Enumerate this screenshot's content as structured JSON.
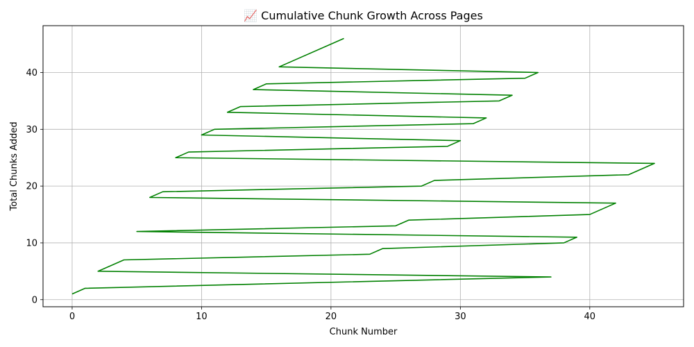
{
  "chart_data": {
    "type": "line",
    "title": "📈 Cumulative Chunk Growth Across Pages",
    "xlabel": "Chunk Number",
    "ylabel": "Total Chunks Added",
    "xlim": [
      -2.25,
      47.25
    ],
    "ylim": [
      -1.25,
      48.25
    ],
    "x_ticks": [
      0,
      10,
      20,
      30,
      40
    ],
    "y_ticks": [
      0,
      10,
      20,
      30,
      40
    ],
    "grid": true,
    "series": [
      {
        "color": "#008000",
        "points": [
          [
            0,
            1
          ],
          [
            1,
            2
          ],
          [
            37,
            4
          ],
          [
            2,
            5
          ],
          [
            4,
            7
          ],
          [
            23,
            8
          ],
          [
            24,
            9
          ],
          [
            38,
            10
          ],
          [
            39,
            11
          ],
          [
            5,
            12
          ],
          [
            25,
            13
          ],
          [
            26,
            14
          ],
          [
            40,
            15
          ],
          [
            42,
            17
          ],
          [
            6,
            18
          ],
          [
            7,
            19
          ],
          [
            27,
            20
          ],
          [
            28,
            21
          ],
          [
            43,
            22
          ],
          [
            45,
            24
          ],
          [
            8,
            25
          ],
          [
            9,
            26
          ],
          [
            29,
            27
          ],
          [
            30,
            28
          ],
          [
            10,
            29
          ],
          [
            11,
            30
          ],
          [
            31,
            31
          ],
          [
            32,
            32
          ],
          [
            12,
            33
          ],
          [
            13,
            34
          ],
          [
            33,
            35
          ],
          [
            34,
            36
          ],
          [
            14,
            37
          ],
          [
            15,
            38
          ],
          [
            35,
            39
          ],
          [
            36,
            40
          ],
          [
            16,
            41
          ],
          [
            21,
            46
          ]
        ]
      }
    ]
  }
}
